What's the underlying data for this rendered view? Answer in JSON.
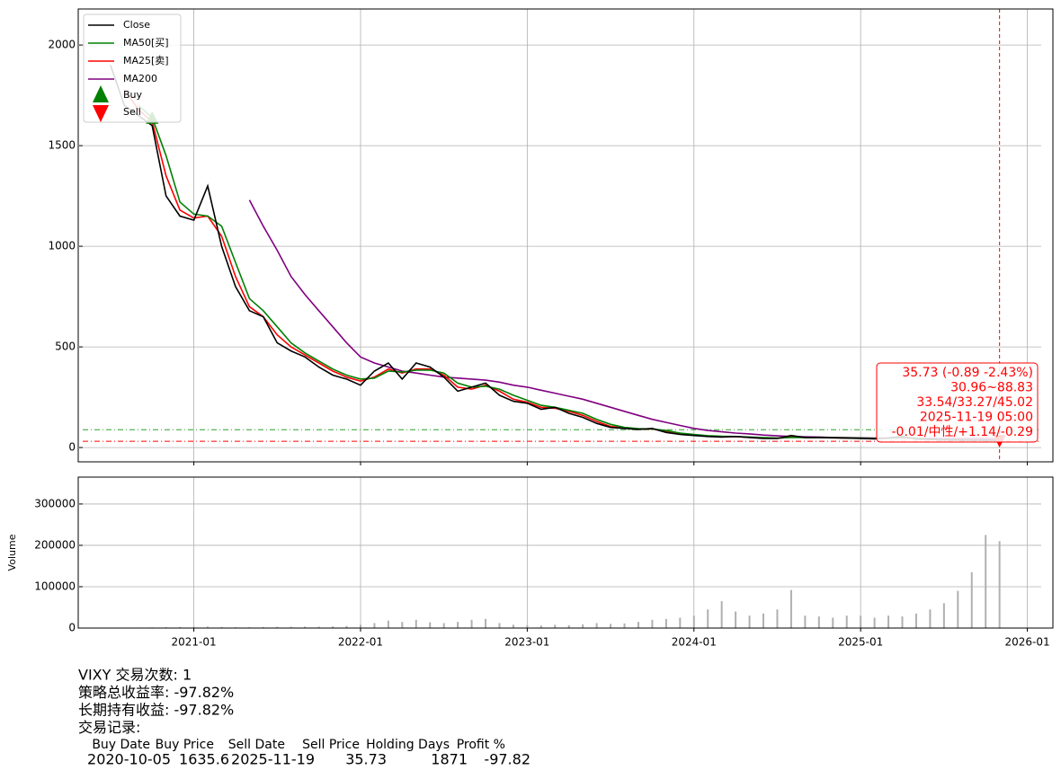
{
  "chart_data": [
    {
      "type": "line",
      "x": [
        "2020-06",
        "2020-07",
        "2020-08",
        "2020-09",
        "2020-10",
        "2020-11",
        "2020-12",
        "2021-01",
        "2021-02",
        "2021-03",
        "2021-04",
        "2021-05",
        "2021-06",
        "2021-07",
        "2021-08",
        "2021-09",
        "2021-10",
        "2021-11",
        "2021-12",
        "2022-01",
        "2022-02",
        "2022-03",
        "2022-04",
        "2022-05",
        "2022-06",
        "2022-07",
        "2022-08",
        "2022-09",
        "2022-10",
        "2022-11",
        "2022-12",
        "2023-01",
        "2023-02",
        "2023-03",
        "2023-04",
        "2023-05",
        "2023-06",
        "2023-07",
        "2023-08",
        "2023-09",
        "2023-10",
        "2023-11",
        "2023-12",
        "2024-01",
        "2024-02",
        "2024-03",
        "2024-04",
        "2024-05",
        "2024-06",
        "2024-07",
        "2024-08",
        "2024-09",
        "2024-10",
        "2024-11",
        "2024-12",
        "2025-01",
        "2025-02",
        "2025-03",
        "2025-04",
        "2025-05",
        "2025-06",
        "2025-07",
        "2025-08",
        "2025-09",
        "2025-10",
        "2025-11"
      ],
      "series": [
        {
          "name": "Close",
          "color": "#000000",
          "values": [
            null,
            1900,
            1700,
            1650,
            1600,
            1250,
            1150,
            1130,
            1300,
            1000,
            800,
            680,
            650,
            520,
            480,
            450,
            400,
            360,
            340,
            310,
            380,
            420,
            340,
            420,
            400,
            350,
            280,
            300,
            320,
            260,
            230,
            220,
            190,
            200,
            170,
            150,
            120,
            100,
            95,
            90,
            95,
            75,
            65,
            60,
            55,
            52,
            55,
            50,
            45,
            45,
            60,
            50,
            50,
            48,
            47,
            45,
            43,
            48,
            55,
            42,
            40,
            38,
            37,
            36,
            37,
            35.73
          ]
        },
        {
          "name": "MA50[买]",
          "color": "#008000",
          "values": [
            null,
            null,
            null,
            1700,
            1640,
            1450,
            1220,
            1160,
            1150,
            1100,
            920,
            740,
            680,
            600,
            520,
            470,
            430,
            390,
            360,
            340,
            345,
            380,
            375,
            385,
            385,
            370,
            320,
            300,
            305,
            290,
            260,
            235,
            210,
            200,
            185,
            170,
            140,
            115,
            100,
            94,
            92,
            85,
            72,
            65,
            59,
            56,
            55,
            52,
            49,
            47,
            50,
            50,
            50,
            49,
            48,
            47,
            45,
            46,
            50,
            47,
            43,
            40,
            39,
            38,
            37,
            37
          ]
        },
        {
          "name": "MA25[卖]",
          "color": "#ff0000",
          "values": [
            null,
            null,
            1780,
            1680,
            1620,
            1350,
            1180,
            1140,
            1150,
            1050,
            850,
            700,
            650,
            560,
            500,
            460,
            420,
            380,
            350,
            330,
            350,
            390,
            370,
            390,
            390,
            360,
            300,
            290,
            310,
            280,
            240,
            225,
            200,
            195,
            180,
            160,
            130,
            105,
            97,
            92,
            93,
            80,
            68,
            62,
            57,
            54,
            54,
            51,
            47,
            46,
            52,
            50,
            50,
            49,
            47,
            46,
            44,
            46,
            52,
            45,
            41,
            39,
            38,
            37,
            37,
            36
          ]
        },
        {
          "name": "MA200",
          "color": "#800080",
          "values": [
            null,
            null,
            null,
            null,
            null,
            null,
            null,
            null,
            null,
            null,
            null,
            1230,
            1100,
            980,
            850,
            760,
            680,
            600,
            520,
            450,
            420,
            400,
            380,
            370,
            360,
            350,
            345,
            340,
            335,
            325,
            310,
            300,
            285,
            270,
            255,
            240,
            220,
            200,
            180,
            160,
            140,
            125,
            110,
            95,
            85,
            78,
            72,
            68,
            62,
            58,
            55,
            53,
            52,
            50,
            49,
            48,
            47,
            47,
            47,
            46,
            46,
            45,
            45,
            45,
            45,
            45
          ]
        }
      ],
      "markers": [
        {
          "name": "Buy",
          "color": "#008000",
          "x": "2020-10",
          "y": 1635.6
        },
        {
          "name": "Sell",
          "color": "#ff0000",
          "x": "2025-11",
          "y": 35.73
        }
      ],
      "hlines": [
        {
          "value": 88.83,
          "color": "#2ca02c"
        },
        {
          "value": 30.96,
          "color": "#ff0000"
        }
      ],
      "vline": "2025-11",
      "annotation": [
        "35.73 (-0.89 -2.43%)",
        "30.96~88.83",
        "33.54/33.27/45.02",
        "2025-11-19 05:00",
        "-0.01/中性/+1.14/-0.29"
      ],
      "xlim": [
        "2020-05",
        "2026-02"
      ],
      "xticks": [
        "2021-01",
        "2022-01",
        "2023-01",
        "2024-01",
        "2025-01",
        "2026-01"
      ],
      "ylim": [
        -71,
        2179
      ],
      "yticks": [
        0,
        500,
        1000,
        1500,
        2000
      ],
      "grid": true,
      "legend": "upper left"
    },
    {
      "type": "bar",
      "y_label": "Volume",
      "color": "#b0b0b0",
      "x": [
        "2020-06",
        "2020-07",
        "2020-08",
        "2020-09",
        "2020-10",
        "2020-11",
        "2020-12",
        "2021-01",
        "2021-02",
        "2021-03",
        "2021-04",
        "2021-05",
        "2021-06",
        "2021-07",
        "2021-08",
        "2021-09",
        "2021-10",
        "2021-11",
        "2021-12",
        "2022-01",
        "2022-02",
        "2022-03",
        "2022-04",
        "2022-05",
        "2022-06",
        "2022-07",
        "2022-08",
        "2022-09",
        "2022-10",
        "2022-11",
        "2022-12",
        "2023-01",
        "2023-02",
        "2023-03",
        "2023-04",
        "2023-05",
        "2023-06",
        "2023-07",
        "2023-08",
        "2023-09",
        "2023-10",
        "2023-11",
        "2023-12",
        "2024-01",
        "2024-02",
        "2024-03",
        "2024-04",
        "2024-05",
        "2024-06",
        "2024-07",
        "2024-08",
        "2024-09",
        "2024-10",
        "2024-11",
        "2024-12",
        "2025-01",
        "2025-02",
        "2025-03",
        "2025-04",
        "2025-05",
        "2025-06",
        "2025-07",
        "2025-08",
        "2025-09",
        "2025-10",
        "2025-11"
      ],
      "values": [
        500,
        800,
        1000,
        1200,
        1500,
        2000,
        2500,
        3000,
        3500,
        2500,
        2000,
        2000,
        2500,
        3000,
        3000,
        3500,
        3500,
        4000,
        5000,
        8000,
        12000,
        18000,
        15000,
        20000,
        14000,
        12000,
        15000,
        20000,
        22000,
        12000,
        8000,
        7000,
        6000,
        8000,
        7000,
        9000,
        12000,
        10000,
        11000,
        15000,
        20000,
        22000,
        25000,
        30000,
        45000,
        65000,
        40000,
        30000,
        35000,
        45000,
        92000,
        30000,
        28000,
        25000,
        30000,
        30000,
        25000,
        30000,
        28000,
        35000,
        45000,
        60000,
        90000,
        135000,
        225000,
        210000
      ],
      "xlim": [
        "2020-05",
        "2026-02"
      ],
      "xticks": [
        "2021-01",
        "2022-01",
        "2023-01",
        "2024-01",
        "2025-01",
        "2026-01"
      ],
      "ylim": [
        0,
        365000
      ],
      "yticks": [
        0,
        100000,
        200000,
        300000
      ],
      "grid": true
    }
  ],
  "summary": {
    "lines": [
      "VIXY 交易次数: 1",
      "策略总收益率: -97.82%",
      "长期持有收益: -97.82%",
      "交易记录:"
    ],
    "table": {
      "header": [
        "Buy Date",
        "Buy Price",
        "Sell Date",
        "Sell Price",
        "Holding Days",
        "Profit %"
      ],
      "rows": [
        [
          "2020-10-05",
          1635.6,
          "2025-11-19",
          35.73,
          1871,
          -97.82
        ]
      ]
    }
  }
}
